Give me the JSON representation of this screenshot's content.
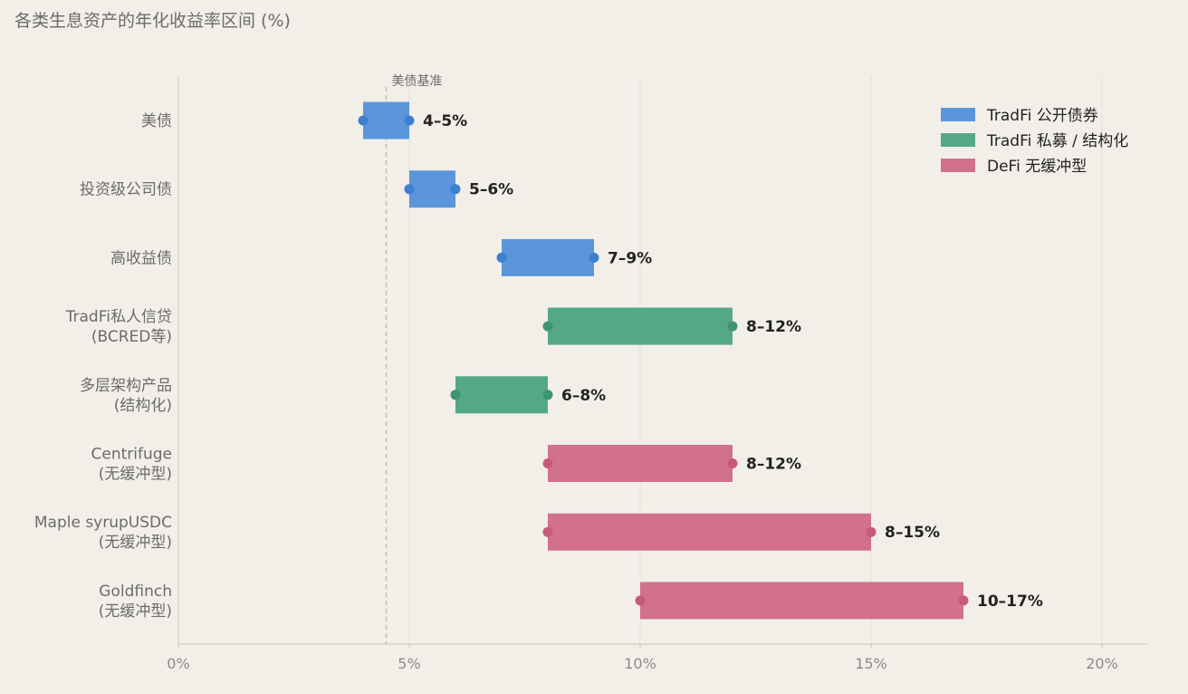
{
  "chart_data": {
    "type": "bar",
    "orientation": "horizontal",
    "subtype": "range",
    "title": "各类生息资产的年化收益率区间 (%)",
    "xlim": [
      0,
      21
    ],
    "xticks": [
      {
        "value": 0,
        "label": "0%"
      },
      {
        "value": 5,
        "label": "5%"
      },
      {
        "value": 10,
        "label": "10%"
      },
      {
        "value": 15,
        "label": "15%"
      },
      {
        "value": 20,
        "label": "20%"
      }
    ],
    "grid": "vertical",
    "legend_position": "top-right",
    "reference_line": {
      "value": 4.5,
      "label": "美债基准",
      "style": "dashed"
    },
    "series": [
      {
        "name": "TradFi 公开债券",
        "color": "#5b96dc",
        "dot_color": "#3f7fd0"
      },
      {
        "name": "TradFi 私募 / 结构化",
        "color": "#55a886",
        "dot_color": "#3f9470"
      },
      {
        "name": "DeFi 无缓冲型",
        "color": "#d1718b",
        "dot_color": "#c75a78"
      }
    ],
    "rows": [
      {
        "category": [
          "美债"
        ],
        "series_index": 0,
        "low": 4,
        "high": 5,
        "label": "4–5%"
      },
      {
        "category": [
          "投资级公司债"
        ],
        "series_index": 0,
        "low": 5,
        "high": 6,
        "label": "5–6%"
      },
      {
        "category": [
          "高收益债"
        ],
        "series_index": 0,
        "low": 7,
        "high": 9,
        "label": "7–9%"
      },
      {
        "category": [
          "TradFi私人信贷",
          "(BCRED等)"
        ],
        "series_index": 1,
        "low": 8,
        "high": 12,
        "label": "8–12%"
      },
      {
        "category": [
          "多层架构产品",
          "(结构化)"
        ],
        "series_index": 1,
        "low": 6,
        "high": 8,
        "label": "6–8%"
      },
      {
        "category": [
          "Centrifuge",
          "(无缓冲型)"
        ],
        "series_index": 2,
        "low": 8,
        "high": 12,
        "label": "8–12%"
      },
      {
        "category": [
          "Maple syrupUSDC",
          "(无缓冲型)"
        ],
        "series_index": 2,
        "low": 8,
        "high": 15,
        "label": "8–15%"
      },
      {
        "category": [
          "Goldfinch",
          "(无缓冲型)"
        ],
        "series_index": 2,
        "low": 10,
        "high": 17,
        "label": "10–17%"
      }
    ]
  }
}
